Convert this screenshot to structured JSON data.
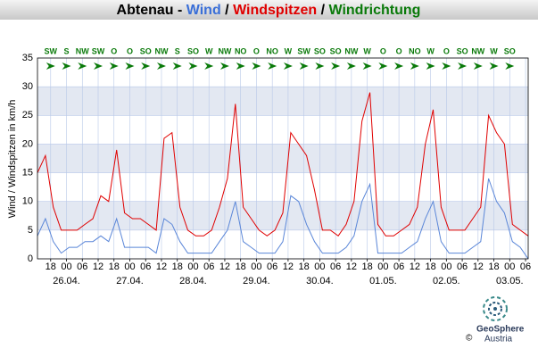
{
  "chart_data": {
    "type": "line",
    "title_parts": [
      {
        "text": "Abtenau - ",
        "color": "#000000"
      },
      {
        "text": "Wind",
        "color": "#3a6fd8"
      },
      {
        "text": " / ",
        "color": "#000000"
      },
      {
        "text": "Windspitzen",
        "color": "#e00000"
      },
      {
        "text": " / ",
        "color": "#000000"
      },
      {
        "text": "Windrichtung",
        "color": "#0a7a0a"
      }
    ],
    "y_label": "Wind / Windspitzen in km/h",
    "ylim": [
      0,
      35
    ],
    "yticks": [
      0,
      5,
      10,
      15,
      20,
      25,
      30,
      35
    ],
    "xlim": [
      -11,
      175
    ],
    "xticks": [
      {
        "value": -6,
        "label": "18"
      },
      {
        "value": 0,
        "label": "00"
      },
      {
        "value": 6,
        "label": "06"
      },
      12,
      18,
      {
        "value": 24,
        "label": "00"
      },
      {
        "value": 30,
        "label": "06"
      },
      {
        "value": 36,
        "label": "12"
      },
      {
        "value": 42,
        "label": "18"
      },
      {
        "value": 48,
        "label": "00"
      },
      {
        "value": 54,
        "label": "06"
      },
      {
        "value": 60,
        "label": "12"
      },
      {
        "value": 66,
        "label": "18"
      },
      {
        "value": 72,
        "label": "00"
      },
      {
        "value": 78,
        "label": "06"
      },
      {
        "value": 84,
        "label": "12"
      },
      {
        "value": 90,
        "label": "18"
      },
      {
        "value": 96,
        "label": "00"
      },
      {
        "value": 102,
        "label": "06"
      },
      {
        "value": 108,
        "label": "12"
      },
      {
        "value": 114,
        "label": "18"
      },
      {
        "value": 120,
        "label": "00"
      },
      {
        "value": 126,
        "label": "06"
      },
      {
        "value": 132,
        "label": "12"
      },
      {
        "value": 138,
        "label": "18"
      },
      {
        "value": 144,
        "label": "00"
      },
      {
        "value": 150,
        "label": "06"
      },
      {
        "value": 156,
        "label": "12"
      },
      {
        "value": 162,
        "label": "18"
      },
      {
        "value": 168,
        "label": "00"
      },
      {
        "value": 174,
        "label": "06"
      }
    ],
    "date_labels": [
      {
        "value": 0,
        "label": "26.04."
      },
      {
        "value": 24,
        "label": "27.04."
      },
      {
        "value": 48,
        "label": "28.04."
      },
      {
        "value": 72,
        "label": "29.04."
      },
      {
        "value": 96,
        "label": "30.04."
      },
      {
        "value": 120,
        "label": "01.05."
      },
      {
        "value": 144,
        "label": "02.05."
      },
      {
        "value": 168,
        "label": "03.05."
      }
    ],
    "directions": {
      "color": "#0a7a0a",
      "x": [
        -6,
        0,
        6,
        12,
        18,
        24,
        30,
        36,
        42,
        48,
        54,
        60,
        66,
        72,
        78,
        84,
        90,
        96,
        102,
        108,
        114,
        120,
        126,
        132,
        138,
        144,
        150,
        156,
        162,
        168
      ],
      "labels": [
        "SW",
        "S",
        "NW",
        "SW",
        "O",
        "O",
        "SO",
        "NW",
        "S",
        "SO",
        "W",
        "NW",
        "NO",
        "O",
        "NO",
        "W",
        "SW",
        "SO",
        "SO",
        "NW",
        "W",
        "O",
        "O",
        "NO",
        "W",
        "O",
        "SO",
        "NW",
        "W",
        "SO"
      ]
    },
    "x": [
      -11,
      -8,
      -5,
      -2,
      1,
      4,
      7,
      10,
      13,
      16,
      19,
      22,
      25,
      28,
      31,
      34,
      37,
      40,
      43,
      46,
      49,
      52,
      55,
      58,
      61,
      64,
      67,
      70,
      73,
      76,
      79,
      82,
      85,
      88,
      91,
      94,
      97,
      100,
      103,
      106,
      109,
      112,
      115,
      118,
      121,
      124,
      127,
      130,
      133,
      136,
      139,
      142,
      145,
      148,
      151,
      154,
      157,
      160,
      163,
      166,
      169,
      172,
      175
    ],
    "series": [
      {
        "name": "Windspitzen",
        "color": "#e00000",
        "values": [
          15,
          18,
          9,
          5,
          5,
          5,
          6,
          7,
          11,
          10,
          19,
          8,
          7,
          7,
          6,
          5,
          21,
          22,
          9,
          5,
          4,
          4,
          5,
          9,
          14,
          27,
          9,
          7,
          5,
          4,
          5,
          8,
          22,
          20,
          18,
          12,
          5,
          5,
          4,
          6,
          10,
          24,
          29,
          6,
          4,
          4,
          5,
          6,
          9,
          20,
          26,
          9,
          5,
          5,
          5,
          7,
          9,
          25,
          22,
          20,
          6,
          5,
          4
        ]
      },
      {
        "name": "Wind",
        "color": "#5a86d8",
        "values": [
          4,
          7,
          3,
          1,
          2,
          2,
          3,
          3,
          4,
          3,
          7,
          2,
          2,
          2,
          2,
          1,
          7,
          6,
          3,
          1,
          1,
          1,
          1,
          3,
          5,
          10,
          3,
          2,
          1,
          1,
          1,
          3,
          11,
          10,
          6,
          3,
          1,
          1,
          1,
          2,
          4,
          10,
          13,
          1,
          1,
          1,
          1,
          2,
          3,
          7,
          10,
          3,
          1,
          1,
          1,
          2,
          3,
          14,
          10,
          8,
          3,
          2,
          0
        ]
      }
    ],
    "grid": true,
    "band_color": "#e3e8f2",
    "grid_color": "#b8c8e8"
  },
  "logo": {
    "name": "GeoSphere",
    "copyright": "©",
    "country": "Austria"
  }
}
